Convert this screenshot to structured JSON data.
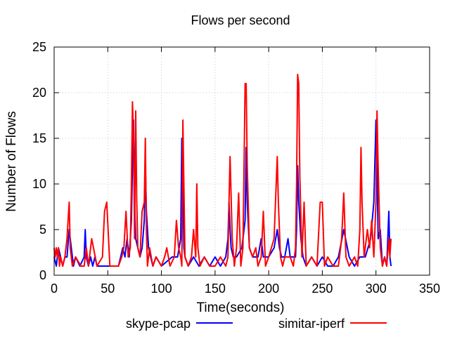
{
  "chart_data": {
    "type": "line",
    "title": "Flows per second",
    "xlabel": "Time(seconds)",
    "ylabel": "Number of Flows",
    "xlim": [
      0,
      350
    ],
    "ylim": [
      0,
      25
    ],
    "xticks": [
      0,
      50,
      100,
      150,
      200,
      250,
      300,
      350
    ],
    "yticks": [
      0,
      5,
      10,
      15,
      20,
      25
    ],
    "grid": true,
    "legend_position": "bottom",
    "series": [
      {
        "name": "skype-pcap",
        "color": "#0000ff",
        "x": [
          0,
          2,
          4,
          6,
          8,
          10,
          12,
          14,
          16,
          18,
          20,
          24,
          28,
          29,
          30,
          32,
          34,
          36,
          38,
          40,
          45,
          50,
          55,
          60,
          62,
          64,
          66,
          68,
          70,
          72,
          73,
          74,
          75,
          76,
          78,
          80,
          82,
          84,
          85,
          86,
          88,
          90,
          92,
          95,
          100,
          110,
          115,
          118,
          119,
          120,
          121,
          122,
          125,
          130,
          135,
          140,
          145,
          150,
          155,
          160,
          162,
          163,
          164,
          165,
          167,
          170,
          175,
          178,
          179,
          180,
          182,
          185,
          190,
          193,
          195,
          200,
          205,
          208,
          209,
          210,
          212,
          215,
          218,
          220,
          225,
          226,
          227,
          228,
          230,
          232,
          235,
          240,
          245,
          250,
          255,
          260,
          265,
          270,
          275,
          280,
          285,
          290,
          295,
          298,
          300,
          301,
          302,
          304,
          306,
          308,
          310,
          312,
          313,
          314
        ],
        "y": [
          2,
          1,
          3,
          2,
          1,
          2,
          2,
          5,
          3,
          1,
          2,
          1,
          2,
          5,
          2,
          1,
          2,
          1,
          2,
          1,
          1,
          1,
          1,
          1,
          2,
          3,
          2,
          4,
          2,
          6,
          12,
          17,
          8,
          4,
          3,
          2,
          3,
          6,
          12,
          7,
          3,
          2,
          1,
          2,
          1,
          2,
          2,
          4,
          15,
          10,
          3,
          2,
          1,
          2,
          1,
          2,
          1,
          2,
          1,
          2,
          4,
          8,
          5,
          3,
          2,
          2,
          3,
          6,
          14,
          8,
          3,
          2,
          2,
          4,
          2,
          2,
          3,
          5,
          4,
          3,
          2,
          2,
          4,
          2,
          2,
          5,
          12,
          8,
          4,
          2,
          1,
          2,
          1,
          2,
          1,
          1,
          2,
          5,
          2,
          1,
          2,
          2,
          4,
          8,
          17,
          12,
          4,
          5,
          1,
          2,
          1,
          7,
          2,
          1
        ]
      },
      {
        "name": "simitar-iperf",
        "color": "#ff0000",
        "x": [
          0,
          1,
          2,
          3,
          4,
          5,
          6,
          8,
          10,
          12,
          13,
          14,
          15,
          17,
          20,
          25,
          28,
          30,
          32,
          35,
          40,
          45,
          47,
          49,
          52,
          55,
          60,
          63,
          65,
          67,
          69,
          71,
          72,
          73,
          74,
          75,
          76,
          77,
          78,
          80,
          82,
          84,
          85,
          86,
          87,
          89,
          92,
          95,
          100,
          103,
          105,
          108,
          112,
          114,
          116,
          118,
          119,
          120,
          122,
          125,
          128,
          130,
          132,
          133,
          134,
          136,
          140,
          145,
          150,
          155,
          160,
          162,
          163,
          164,
          166,
          168,
          170,
          172,
          174,
          176,
          177,
          178,
          179,
          180,
          182,
          185,
          188,
          190,
          193,
          195,
          197,
          200,
          205,
          207,
          208,
          209,
          211,
          213,
          215,
          220,
          223,
          225,
          226,
          227,
          228,
          229,
          231,
          233,
          235,
          240,
          245,
          248,
          250,
          252,
          255,
          260,
          265,
          268,
          270,
          272,
          275,
          280,
          283,
          285,
          286,
          287,
          289,
          292,
          294,
          296,
          297,
          298,
          300,
          301,
          302,
          304,
          306,
          308,
          310,
          312,
          313,
          314
        ],
        "y": [
          3,
          2,
          3,
          2,
          3,
          1,
          2,
          1,
          2,
          4,
          6,
          8,
          3,
          1,
          2,
          1,
          1,
          3,
          1,
          4,
          1,
          2,
          7,
          8,
          1,
          1,
          1,
          2,
          3,
          7,
          2,
          3,
          10,
          19,
          15,
          4,
          18,
          8,
          3,
          2,
          7,
          8,
          15,
          5,
          1,
          3,
          1,
          2,
          1,
          2,
          3,
          1,
          2,
          6,
          3,
          2,
          1,
          17,
          2,
          1,
          2,
          5,
          2,
          10,
          3,
          1,
          2,
          1,
          1,
          2,
          1,
          2,
          8,
          13,
          4,
          1,
          3,
          9,
          1,
          3,
          12,
          21,
          21,
          12,
          3,
          2,
          3,
          1,
          2,
          7,
          1,
          2,
          4,
          10,
          13,
          8,
          2,
          1,
          2,
          2,
          1,
          3,
          10,
          22,
          21,
          11,
          2,
          8,
          1,
          2,
          1,
          8,
          8,
          1,
          2,
          1,
          1,
          4,
          9,
          2,
          1,
          2,
          1,
          5,
          14,
          8,
          2,
          5,
          3,
          6,
          4,
          2,
          8,
          18,
          12,
          3,
          1,
          2,
          1,
          4,
          2,
          4
        ]
      }
    ]
  }
}
